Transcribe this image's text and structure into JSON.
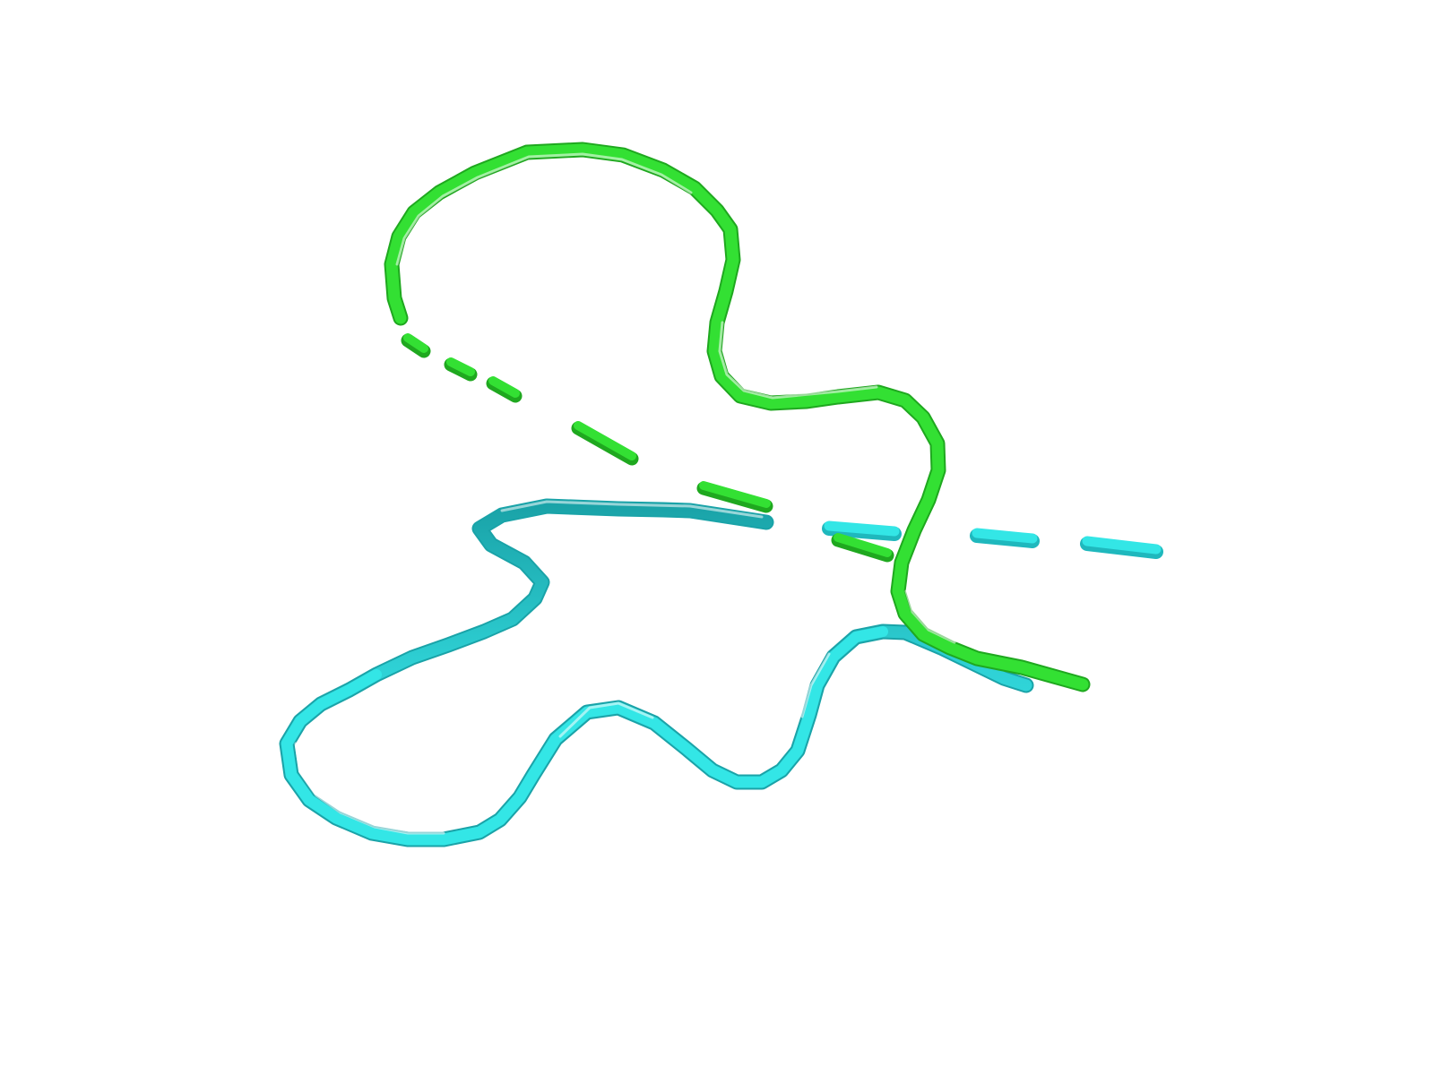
{
  "scene": {
    "background": "#ffffff",
    "chains": [
      {
        "name": "chain-green",
        "color": "#33e033",
        "dark": "#1fa81f"
      },
      {
        "name": "chain-cyan",
        "color": "#33e6e6",
        "dark": "#1a9fa3"
      }
    ]
  }
}
